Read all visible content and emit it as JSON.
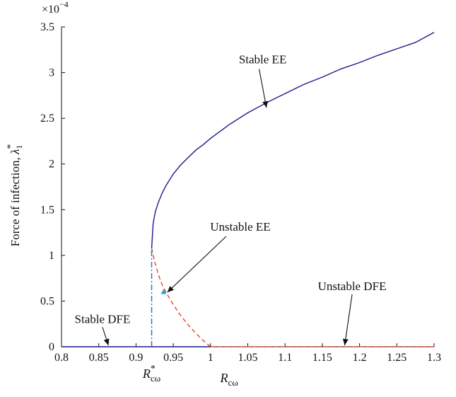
{
  "chart_data": {
    "type": "line",
    "xlabel": "R_cω",
    "ylabel": "Force of infection, λ1*",
    "y_multiplier": "×10^−4",
    "xlim": [
      0.8,
      1.3
    ],
    "ylim": [
      0,
      3.5
    ],
    "x_ticks": [
      "0.8",
      "0.85",
      "0.9",
      "0.95",
      "1",
      "1.05",
      "1.1",
      "1.15",
      "1.2",
      "1.25",
      "1.3"
    ],
    "y_ticks": [
      "0",
      "0.5",
      "1",
      "1.5",
      "2",
      "2.5",
      "3",
      "3.5"
    ],
    "grid": false,
    "x_marker": {
      "label": "R*_cω",
      "x": 0.921
    },
    "series": [
      {
        "name": "Stable EE",
        "style": "solid",
        "color": "#1a1a8c",
        "x": [
          0.921,
          0.923,
          0.926,
          0.93,
          0.935,
          0.94,
          0.95,
          0.96,
          0.97,
          0.98,
          0.99,
          1.0,
          1.025,
          1.05,
          1.075,
          1.1,
          1.125,
          1.15,
          1.175,
          1.2,
          1.225,
          1.25,
          1.275,
          1.3
        ],
        "y": [
          1.08,
          1.35,
          1.48,
          1.58,
          1.68,
          1.76,
          1.89,
          1.99,
          2.07,
          2.15,
          2.21,
          2.28,
          2.43,
          2.56,
          2.67,
          2.77,
          2.87,
          2.95,
          3.04,
          3.11,
          3.19,
          3.26,
          3.33,
          3.44
        ]
      },
      {
        "name": "Unstable EE",
        "style": "dashed",
        "color": "#e8472a",
        "x": [
          0.921,
          0.925,
          0.93,
          0.935,
          0.94,
          0.95,
          0.96,
          0.97,
          0.98,
          0.99,
          1.0
        ],
        "y": [
          1.08,
          0.93,
          0.79,
          0.68,
          0.6,
          0.46,
          0.34,
          0.24,
          0.15,
          0.07,
          0.0
        ]
      },
      {
        "name": "Stable DFE",
        "style": "solid",
        "color": "#1a1a8c",
        "x": [
          0.8,
          1.0
        ],
        "y": [
          0,
          0
        ]
      },
      {
        "name": "Unstable DFE",
        "style": "dashed",
        "color": "#e8472a",
        "x": [
          1.0,
          1.3
        ],
        "y": [
          0,
          0
        ]
      },
      {
        "name": "",
        "style": "dashdot",
        "color": "#2a6fb4",
        "x": [
          0.921,
          0.921
        ],
        "y": [
          0,
          1.08
        ]
      }
    ],
    "point": {
      "x": 0.937,
      "y": 0.6,
      "color": "#2a9fd6"
    },
    "annotations": [
      {
        "label": "Stable EE",
        "text_x": 1.07,
        "text_y": 3.1,
        "arrow_to_x": 1.075,
        "arrow_to_y": 2.6
      },
      {
        "label": "Unstable EE",
        "text_x": 1.04,
        "text_y": 1.27,
        "arrow_to_x": 0.942,
        "arrow_to_y": 0.58
      },
      {
        "label": "Unstable DFE",
        "text_x": 1.19,
        "text_y": 0.62,
        "arrow_to_x": 1.18,
        "arrow_to_y": 0.0
      },
      {
        "label": "Stable DFE",
        "text_x": 0.855,
        "text_y": 0.26,
        "arrow_to_x": 0.863,
        "arrow_to_y": 0.0
      }
    ]
  }
}
